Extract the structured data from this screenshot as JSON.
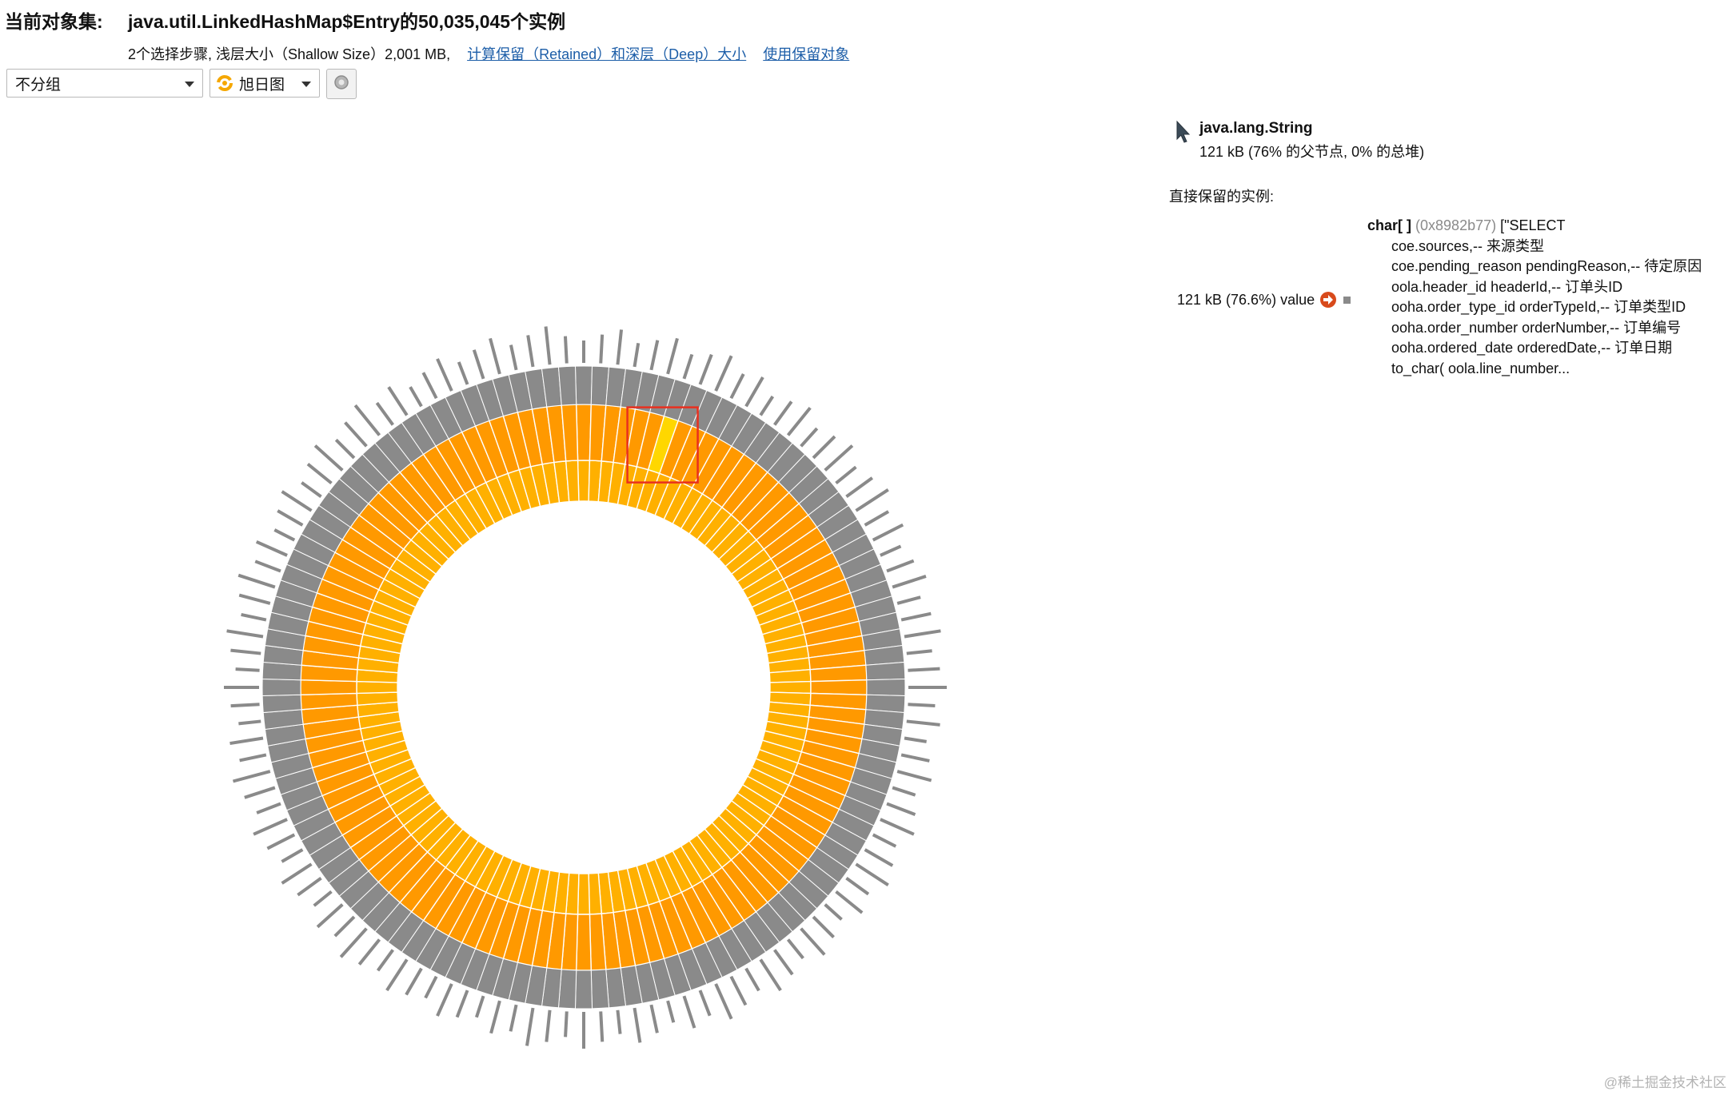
{
  "header": {
    "label": "当前对象集:",
    "title": "java.util.LinkedHashMap$Entry的50,035,045个实例",
    "summary": "2个选择步骤, 浅层大小（Shallow Size）2,001 MB,",
    "link_calc": "计算保留（Retained）和深层（Deep）大小",
    "link_use": "使用保留对象"
  },
  "toolbar": {
    "group_value": "不分组",
    "view_value": "旭日图",
    "settings_icon": "settings-icon"
  },
  "info": {
    "class_name": "java.lang.String",
    "size_text": "121 kB (76% 的父节点, 0% 的总堆)"
  },
  "retained": {
    "label": "直接保留的实例:",
    "field_text": "121 kB (76.6%) value",
    "object_type": "char[ ]",
    "object_addr": "(0x8982b77)",
    "object_first": "[\"SELECT",
    "lines": [
      "coe.sources,-- 来源类型",
      "coe.pending_reason pendingReason,-- 待定原因",
      "oola.header_id headerId,-- 订单头ID",
      "ooha.order_type_id orderTypeId,-- 订单类型ID",
      "ooha.order_number orderNumber,-- 订单编号",
      "ooha.ordered_date orderedDate,-- 订单日期",
      "to_char( oola.line_number..."
    ]
  },
  "chart_data": {
    "type": "sunburst",
    "segments_per_ring": 120,
    "rings": [
      {
        "name": "LinkedHashMap$Entry",
        "color": "#ffb000"
      },
      {
        "name": "java.lang.String",
        "color": "#ff9900"
      },
      {
        "name": "char[]",
        "color": "#8a8a8a"
      }
    ],
    "highlighted_segment": {
      "ring": "java.lang.String",
      "color": "#ffd700"
    }
  },
  "watermark": "@稀土掘金技术社区"
}
